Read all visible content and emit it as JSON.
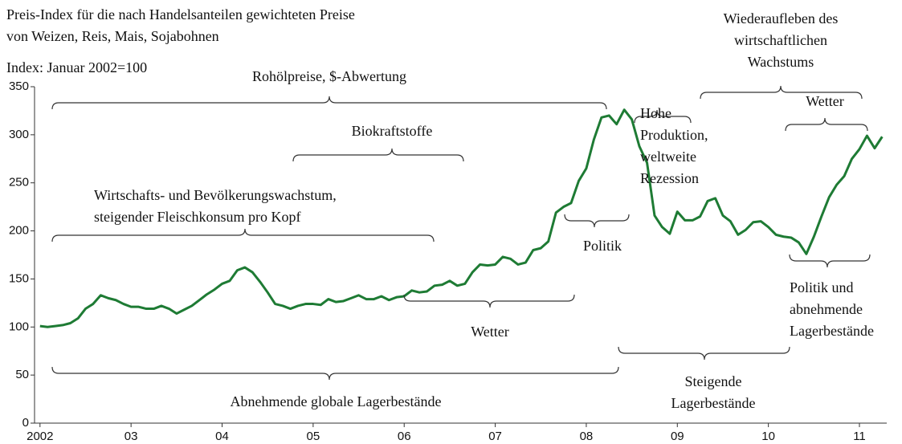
{
  "chart_data": {
    "type": "line",
    "title": [
      "Preis-Index für die nach Handelsanteilen gewichteten Preise",
      "von Weizen, Reis, Mais, Sojabohnen"
    ],
    "subtitle": "Index: Januar 2002=100",
    "color": "#1e7b34",
    "x": [
      2002,
      2002.083,
      2002.167,
      2002.25,
      2002.333,
      2002.417,
      2002.5,
      2002.583,
      2002.667,
      2002.75,
      2002.833,
      2002.917,
      2003,
      2003.083,
      2003.167,
      2003.25,
      2003.333,
      2003.417,
      2003.5,
      2003.583,
      2003.667,
      2003.75,
      2003.833,
      2003.917,
      2004,
      2004.083,
      2004.167,
      2004.25,
      2004.333,
      2004.417,
      2004.5,
      2004.583,
      2004.667,
      2004.75,
      2004.833,
      2004.917,
      2005,
      2005.083,
      2005.167,
      2005.25,
      2005.333,
      2005.417,
      2005.5,
      2005.583,
      2005.667,
      2005.75,
      2005.833,
      2005.917,
      2006,
      2006.083,
      2006.167,
      2006.25,
      2006.333,
      2006.417,
      2006.5,
      2006.583,
      2006.667,
      2006.75,
      2006.833,
      2006.917,
      2007,
      2007.083,
      2007.167,
      2007.25,
      2007.333,
      2007.417,
      2007.5,
      2007.583,
      2007.667,
      2007.75,
      2007.833,
      2007.917,
      2008,
      2008.083,
      2008.167,
      2008.25,
      2008.333,
      2008.417,
      2008.5,
      2008.583,
      2008.667,
      2008.75,
      2008.833,
      2008.917,
      2009,
      2009.083,
      2009.167,
      2009.25,
      2009.333,
      2009.417,
      2009.5,
      2009.583,
      2009.667,
      2009.75,
      2009.833,
      2009.917,
      2010,
      2010.083,
      2010.167,
      2010.25,
      2010.333,
      2010.417,
      2010.5,
      2010.583,
      2010.667,
      2010.75,
      2010.833,
      2010.917,
      2011,
      2011.083,
      2011.167,
      2011.25
    ],
    "values": [
      101,
      100,
      101,
      102,
      104,
      109,
      119,
      124,
      133,
      130,
      128,
      124,
      121,
      121,
      119,
      119,
      122,
      119,
      114,
      118,
      122,
      128,
      134,
      139,
      145,
      148,
      159,
      162,
      157,
      147,
      136,
      124,
      122,
      119,
      122,
      124,
      124,
      123,
      129,
      126,
      127,
      130,
      133,
      129,
      129,
      132,
      128,
      131,
      132,
      138,
      136,
      137,
      143,
      144,
      148,
      143,
      145,
      157,
      165,
      164,
      165,
      173,
      171,
      165,
      167,
      180,
      182,
      189,
      219,
      225,
      229,
      252,
      265,
      295,
      318,
      320,
      311,
      326,
      316,
      288,
      271,
      216,
      204,
      197,
      220,
      211,
      211,
      215,
      231,
      234,
      216,
      210,
      196,
      201,
      209,
      210,
      204,
      196,
      194,
      193,
      188,
      176,
      194,
      215,
      235,
      248,
      257,
      275,
      285,
      299,
      286,
      298
    ],
    "xlim": [
      2001.94,
      2011.3
    ],
    "xticks": [
      2002,
      {
        "value": 2003,
        "label": "03"
      },
      {
        "value": 2004,
        "label": "04"
      },
      {
        "value": 2005,
        "label": "05"
      },
      {
        "value": 2006,
        "label": "06"
      },
      {
        "value": 2007,
        "label": "07"
      },
      {
        "value": 2008,
        "label": "08"
      },
      {
        "value": 2009,
        "label": "09"
      },
      {
        "value": 2010,
        "label": "10"
      },
      {
        "value": 2011,
        "label": "11"
      }
    ],
    "ylim": [
      0,
      350
    ],
    "yticks": [
      0,
      50,
      100,
      150,
      200,
      250,
      300,
      350
    ],
    "annotations": [
      [
        "Rohölpreise, $-Abwertung"
      ],
      [
        "Biokraftstoffe"
      ],
      [
        "Wirtschafts- und Bevölkerungswachstum,",
        "steigender Fleischkonsum pro Kopf"
      ],
      [
        "Wetter"
      ],
      [
        "Abnehmende globale Lagerbestände"
      ],
      [
        "Politik"
      ],
      [
        "Hohe",
        "Produktion,",
        "weltweite",
        "Rezession"
      ],
      [
        "Wiederaufleben des",
        "wirtschaftlichen",
        "Wachstums"
      ],
      [
        "Wetter"
      ],
      [
        "Politik und",
        "abnehmende",
        "Lagerbestände"
      ],
      [
        "Steigende",
        "Lagerbestände"
      ]
    ]
  }
}
